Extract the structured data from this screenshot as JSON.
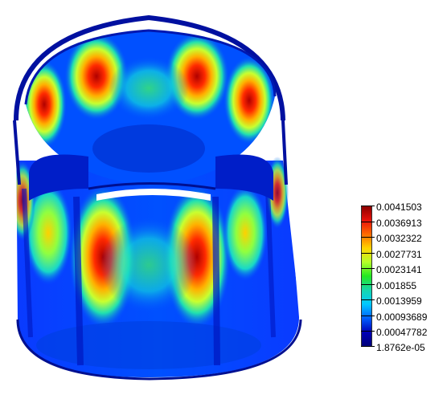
{
  "colorbar": {
    "labels": [
      "0.0041503",
      "0.0036913",
      "0.0032322",
      "0.0027731",
      "0.0023141",
      "0.001855",
      "0.0013959",
      "0.00093689",
      "0.00047782",
      "1.8762e-05"
    ],
    "stops": [
      "#8b0000",
      "#e8110a",
      "#ff6a00",
      "#ffd400",
      "#b5ff2a",
      "#22e822",
      "#16d6ad",
      "#00c8ff",
      "#0060ff",
      "#0000b8",
      "#00007a"
    ]
  }
}
